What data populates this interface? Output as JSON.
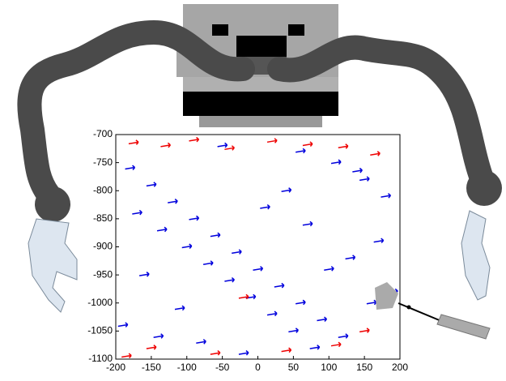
{
  "chart_data": {
    "type": "scatter",
    "xlim": [
      -200,
      200
    ],
    "xticks": [
      -200,
      -150,
      -100,
      -50,
      0,
      50,
      100,
      150,
      200
    ],
    "ylim": [
      -1100,
      -700
    ],
    "yticks": [
      -700,
      -750,
      -800,
      -850,
      -900,
      -950,
      -1000,
      -1050,
      -1100
    ],
    "y_reversed": true,
    "series": [
      {
        "color": "#0000dd",
        "x": [
          -180,
          -150,
          -120,
          -90,
          -60,
          -30,
          0,
          30,
          60,
          90,
          120,
          150,
          180,
          -170,
          -135,
          -100,
          -70,
          -40,
          -10,
          20,
          50,
          80,
          110,
          140,
          170,
          -160,
          -110,
          -50,
          10,
          70,
          130,
          190,
          -190,
          -80,
          40,
          100,
          160,
          -20,
          -140,
          60
        ],
        "values": [
          -760,
          -790,
          -820,
          -850,
          -880,
          -910,
          -940,
          -970,
          -1000,
          -1030,
          -1060,
          -780,
          -810,
          -840,
          -870,
          -900,
          -930,
          -960,
          -990,
          -1020,
          -1050,
          -1080,
          -750,
          -765,
          -890,
          -950,
          -1010,
          -720,
          -830,
          -860,
          -920,
          -980,
          -1040,
          -1070,
          -800,
          -940,
          -1000,
          -1090,
          -1060,
          -730
        ]
      },
      {
        "color": "#ee0000",
        "x": [
          -175,
          -130,
          -90,
          -40,
          20,
          70,
          120,
          165,
          -150,
          -60,
          40,
          110,
          -185,
          -20,
          150
        ],
        "values": [
          -715,
          -720,
          -710,
          -725,
          -712,
          -718,
          -722,
          -735,
          -1080,
          -1090,
          -1085,
          -1075,
          -1095,
          -990,
          -1050
        ]
      }
    ]
  }
}
